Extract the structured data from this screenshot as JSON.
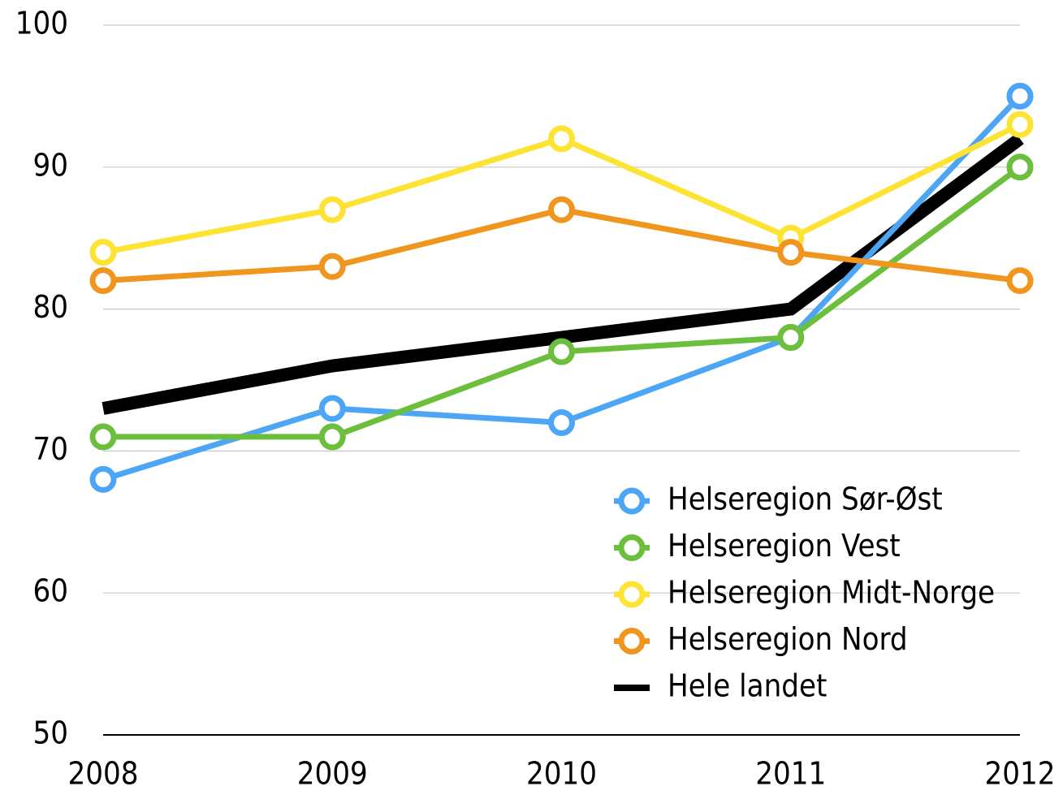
{
  "chart_data": {
    "type": "line",
    "categories": [
      "2008",
      "2009",
      "2010",
      "2011",
      "2012"
    ],
    "series": [
      {
        "name": "Helseregion Sør-Øst",
        "color": "#4da6f5",
        "marker": true,
        "values": [
          68,
          73,
          72,
          78,
          95
        ]
      },
      {
        "name": "Helseregion Vest",
        "color": "#6cbf3c",
        "marker": true,
        "values": [
          71,
          71,
          77,
          78,
          90
        ]
      },
      {
        "name": "Helseregion Midt-Norge",
        "color": "#fde333",
        "marker": true,
        "values": [
          84,
          87,
          92,
          85,
          93
        ]
      },
      {
        "name": "Helseregion Nord",
        "color": "#f0961e",
        "marker": true,
        "values": [
          82,
          83,
          87,
          84,
          82
        ]
      },
      {
        "name": "Hele landet",
        "color": "#000000",
        "marker": false,
        "values": [
          73,
          76,
          78,
          80,
          92
        ]
      }
    ],
    "ylim": [
      50,
      100
    ],
    "yticks": [
      50,
      60,
      70,
      80,
      90,
      100
    ],
    "grid": true,
    "legend": "lower right"
  }
}
